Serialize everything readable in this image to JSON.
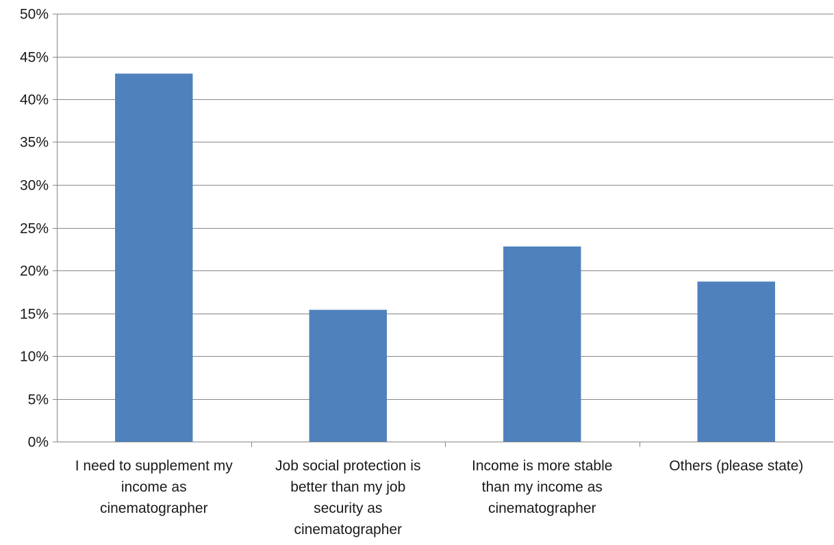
{
  "chart_data": {
    "type": "bar",
    "title": "",
    "xlabel": "",
    "ylabel": "",
    "ylim": [
      0,
      0.5
    ],
    "y_tick_step": 0.05,
    "y_tick_format": "percent",
    "grid": true,
    "legend": "none",
    "colors": {
      "bar": "#4f81bd",
      "grid": "#868686",
      "axis": "#868686"
    },
    "categories": [
      "I need to supplement my income as cinematographer",
      "Job social protection is better than my job security as cinematographer",
      "Income is more stable than my income as cinematographer",
      "Others (please state)"
    ],
    "category_lines": [
      [
        "I need to supplement my",
        "income as",
        "cinematographer"
      ],
      [
        "Job social protection is",
        "better than my job",
        "security as",
        "cinematographer"
      ],
      [
        "Income is more stable",
        "than my income as",
        "cinematographer"
      ],
      [
        "Others (please state)"
      ]
    ],
    "values": [
      0.43,
      0.154,
      0.228,
      0.187
    ]
  }
}
